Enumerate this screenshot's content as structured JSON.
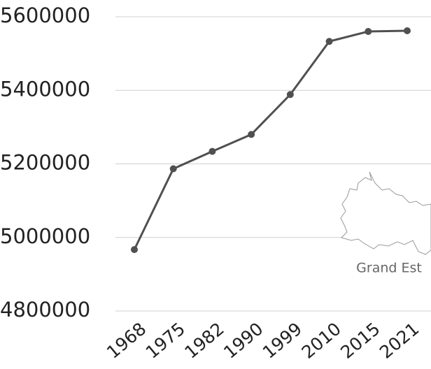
{
  "chart_data": {
    "type": "line",
    "categories": [
      "1968",
      "1975",
      "1982",
      "1990",
      "1999",
      "2010",
      "2015",
      "2021"
    ],
    "series": [
      {
        "name": "Grand Est",
        "color": "#505050",
        "values": [
          4967000,
          5186700,
          5234000,
          5280000,
          5388600,
          5533000,
          5560000,
          5562000
        ]
      }
    ],
    "ylim": [
      4800000,
      5600000
    ],
    "yticks": [
      4800000,
      5000000,
      5200000,
      5400000,
      5600000
    ],
    "grid": true,
    "annotation": "Grand Est"
  }
}
